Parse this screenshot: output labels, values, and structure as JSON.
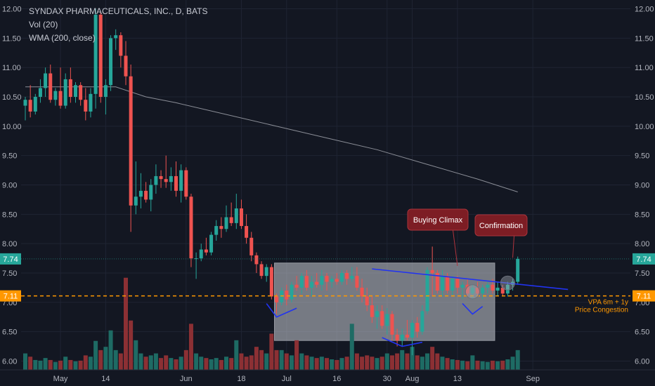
{
  "header": {
    "symbol_line": "SYNDAX PHARMACEUTICALS, INC., D, BATS",
    "indicator_volume": "Vol (20)",
    "indicator_wma": "WMA (200, close)"
  },
  "colors": {
    "background": "#131722",
    "up": "#26a69a",
    "down": "#ef5350",
    "wma": "#8a8d96",
    "trendline": "#2133f0",
    "congestion": "#ff9800",
    "callout": "#7d1d24"
  },
  "chart_data": {
    "type": "candlestick",
    "title": "SYNDAX PHARMACEUTICALS, INC., D, BATS",
    "ylim": [
      5.85,
      12.15
    ],
    "y_ticks": [
      12.0,
      11.5,
      11.0,
      10.5,
      10.0,
      9.5,
      9.0,
      8.5,
      8.0,
      7.5,
      7.0,
      6.5,
      6.0
    ],
    "y_tick_labels": [
      "12.00",
      "11.50",
      "11.00",
      "10.50",
      "10.00",
      "9.50",
      "9.00",
      "8.50",
      "8.00",
      "7.50",
      "7.00",
      "6.50",
      "6.00"
    ],
    "x_labels": [
      {
        "index": 7,
        "label": "May"
      },
      {
        "index": 16,
        "label": "14"
      },
      {
        "index": 32,
        "label": "Jun"
      },
      {
        "index": 43,
        "label": "18"
      },
      {
        "index": 52,
        "label": "Jul"
      },
      {
        "index": 62,
        "label": "16"
      },
      {
        "index": 72,
        "label": "30"
      },
      {
        "index": 77,
        "label": "Aug"
      },
      {
        "index": 86,
        "label": "13"
      },
      {
        "index": 101,
        "label": "Sep"
      }
    ],
    "grid": true,
    "last_price_label": "7.74",
    "congestion_price_label": "7.11",
    "congestion_level": 7.11,
    "candles": [
      {
        "o": 10.35,
        "h": 10.5,
        "l": 10.1,
        "c": 10.45,
        "v": 0.25
      },
      {
        "o": 10.45,
        "h": 10.7,
        "l": 10.15,
        "c": 10.25,
        "v": 0.2
      },
      {
        "o": 10.25,
        "h": 10.55,
        "l": 10.2,
        "c": 10.5,
        "v": 0.15
      },
      {
        "o": 10.5,
        "h": 10.8,
        "l": 10.4,
        "c": 10.65,
        "v": 0.14
      },
      {
        "o": 10.65,
        "h": 11.0,
        "l": 10.5,
        "c": 10.9,
        "v": 0.18
      },
      {
        "o": 10.9,
        "h": 11.05,
        "l": 10.4,
        "c": 10.45,
        "v": 0.15
      },
      {
        "o": 10.45,
        "h": 10.65,
        "l": 10.35,
        "c": 10.6,
        "v": 0.12
      },
      {
        "o": 10.6,
        "h": 11.0,
        "l": 10.3,
        "c": 10.35,
        "v": 0.14
      },
      {
        "o": 10.35,
        "h": 10.9,
        "l": 10.3,
        "c": 10.8,
        "v": 0.2
      },
      {
        "o": 10.8,
        "h": 11.0,
        "l": 10.4,
        "c": 10.5,
        "v": 0.15
      },
      {
        "o": 10.5,
        "h": 10.75,
        "l": 10.4,
        "c": 10.7,
        "v": 0.13
      },
      {
        "o": 10.7,
        "h": 10.75,
        "l": 10.35,
        "c": 10.45,
        "v": 0.14
      },
      {
        "o": 10.45,
        "h": 10.65,
        "l": 10.1,
        "c": 10.25,
        "v": 0.22
      },
      {
        "o": 10.25,
        "h": 10.65,
        "l": 10.15,
        "c": 10.55,
        "v": 0.2
      },
      {
        "o": 10.55,
        "h": 12.0,
        "l": 10.3,
        "c": 11.9,
        "v": 0.44
      },
      {
        "o": 11.9,
        "h": 11.95,
        "l": 10.4,
        "c": 10.5,
        "v": 0.3
      },
      {
        "o": 10.5,
        "h": 10.8,
        "l": 10.2,
        "c": 10.7,
        "v": 0.35
      },
      {
        "o": 10.7,
        "h": 11.55,
        "l": 10.6,
        "c": 11.5,
        "v": 0.6
      },
      {
        "o": 11.5,
        "h": 11.65,
        "l": 11.3,
        "c": 11.55,
        "v": 0.3
      },
      {
        "o": 11.55,
        "h": 11.6,
        "l": 11.0,
        "c": 11.2,
        "v": 0.25
      },
      {
        "o": 11.2,
        "h": 11.45,
        "l": 10.7,
        "c": 10.85,
        "v": 1.4
      },
      {
        "o": 10.85,
        "h": 11.05,
        "l": 8.2,
        "c": 8.65,
        "v": 0.75
      },
      {
        "o": 8.65,
        "h": 9.4,
        "l": 8.5,
        "c": 8.8,
        "v": 0.45
      },
      {
        "o": 8.8,
        "h": 9.2,
        "l": 8.6,
        "c": 8.9,
        "v": 0.25
      },
      {
        "o": 8.9,
        "h": 9.05,
        "l": 8.7,
        "c": 8.75,
        "v": 0.2
      },
      {
        "o": 8.75,
        "h": 9.1,
        "l": 8.55,
        "c": 9.0,
        "v": 0.22
      },
      {
        "o": 9.0,
        "h": 9.35,
        "l": 8.85,
        "c": 9.15,
        "v": 0.25
      },
      {
        "o": 9.15,
        "h": 9.25,
        "l": 8.95,
        "c": 9.1,
        "v": 0.18
      },
      {
        "o": 9.1,
        "h": 9.5,
        "l": 8.95,
        "c": 9.05,
        "v": 0.22
      },
      {
        "o": 9.05,
        "h": 9.3,
        "l": 8.9,
        "c": 9.15,
        "v": 0.18
      },
      {
        "o": 9.15,
        "h": 9.4,
        "l": 8.8,
        "c": 8.9,
        "v": 0.16
      },
      {
        "o": 8.9,
        "h": 9.35,
        "l": 8.7,
        "c": 9.25,
        "v": 0.2
      },
      {
        "o": 9.25,
        "h": 9.3,
        "l": 8.75,
        "c": 8.8,
        "v": 0.3
      },
      {
        "o": 8.8,
        "h": 8.85,
        "l": 7.6,
        "c": 7.75,
        "v": 0.7
      },
      {
        "o": 7.75,
        "h": 7.85,
        "l": 7.4,
        "c": 7.75,
        "v": 0.25
      },
      {
        "o": 7.75,
        "h": 8.0,
        "l": 7.7,
        "c": 7.9,
        "v": 0.2
      },
      {
        "o": 7.9,
        "h": 8.1,
        "l": 7.8,
        "c": 7.85,
        "v": 0.18
      },
      {
        "o": 7.85,
        "h": 8.2,
        "l": 7.8,
        "c": 8.15,
        "v": 0.16
      },
      {
        "o": 8.15,
        "h": 8.4,
        "l": 8.05,
        "c": 8.3,
        "v": 0.18
      },
      {
        "o": 8.3,
        "h": 8.45,
        "l": 8.1,
        "c": 8.25,
        "v": 0.15
      },
      {
        "o": 8.25,
        "h": 8.65,
        "l": 8.2,
        "c": 8.45,
        "v": 0.2
      },
      {
        "o": 8.45,
        "h": 8.7,
        "l": 8.3,
        "c": 8.35,
        "v": 0.18
      },
      {
        "o": 8.35,
        "h": 8.85,
        "l": 8.25,
        "c": 8.6,
        "v": 0.45
      },
      {
        "o": 8.6,
        "h": 8.75,
        "l": 8.25,
        "c": 8.3,
        "v": 0.25
      },
      {
        "o": 8.3,
        "h": 8.5,
        "l": 8.0,
        "c": 8.1,
        "v": 0.2
      },
      {
        "o": 8.1,
        "h": 8.2,
        "l": 7.7,
        "c": 7.8,
        "v": 0.22
      },
      {
        "o": 7.8,
        "h": 7.85,
        "l": 7.5,
        "c": 7.65,
        "v": 0.35
      },
      {
        "o": 7.65,
        "h": 7.7,
        "l": 7.4,
        "c": 7.45,
        "v": 0.3
      },
      {
        "o": 7.45,
        "h": 7.65,
        "l": 7.35,
        "c": 7.6,
        "v": 0.25
      },
      {
        "o": 7.6,
        "h": 7.65,
        "l": 7.05,
        "c": 7.1,
        "v": 0.55
      },
      {
        "o": 7.1,
        "h": 7.15,
        "l": 6.8,
        "c": 7.0,
        "v": 0.3
      },
      {
        "o": 7.0,
        "h": 7.25,
        "l": 6.95,
        "c": 7.2,
        "v": 0.3
      },
      {
        "o": 7.2,
        "h": 7.3,
        "l": 6.95,
        "c": 7.05,
        "v": 0.25
      },
      {
        "o": 7.05,
        "h": 7.35,
        "l": 7.0,
        "c": 7.3,
        "v": 0.22
      },
      {
        "o": 7.3,
        "h": 7.45,
        "l": 7.2,
        "c": 7.25,
        "v": 0.45
      },
      {
        "o": 7.25,
        "h": 7.5,
        "l": 7.15,
        "c": 7.45,
        "v": 0.25
      },
      {
        "o": 7.45,
        "h": 7.55,
        "l": 7.2,
        "c": 7.25,
        "v": 0.22
      },
      {
        "o": 7.25,
        "h": 7.45,
        "l": 7.1,
        "c": 7.35,
        "v": 0.2
      },
      {
        "o": 7.35,
        "h": 7.5,
        "l": 7.25,
        "c": 7.3,
        "v": 0.18
      },
      {
        "o": 7.3,
        "h": 7.55,
        "l": 7.2,
        "c": 7.45,
        "v": 0.2
      },
      {
        "o": 7.45,
        "h": 7.5,
        "l": 7.2,
        "c": 7.35,
        "v": 0.18
      },
      {
        "o": 7.35,
        "h": 7.45,
        "l": 7.25,
        "c": 7.4,
        "v": 0.16
      },
      {
        "o": 7.4,
        "h": 7.5,
        "l": 7.3,
        "c": 7.35,
        "v": 0.15
      },
      {
        "o": 7.35,
        "h": 7.55,
        "l": 7.3,
        "c": 7.5,
        "v": 0.18
      },
      {
        "o": 7.5,
        "h": 7.55,
        "l": 7.3,
        "c": 7.4,
        "v": 0.2
      },
      {
        "o": 7.4,
        "h": 7.6,
        "l": 7.35,
        "c": 7.45,
        "v": 0.7
      },
      {
        "o": 7.45,
        "h": 7.6,
        "l": 7.2,
        "c": 7.25,
        "v": 0.25
      },
      {
        "o": 7.25,
        "h": 7.4,
        "l": 7.0,
        "c": 7.1,
        "v": 0.2
      },
      {
        "o": 7.1,
        "h": 7.25,
        "l": 6.85,
        "c": 6.95,
        "v": 0.22
      },
      {
        "o": 6.95,
        "h": 7.1,
        "l": 6.65,
        "c": 6.75,
        "v": 0.2
      },
      {
        "o": 6.75,
        "h": 6.95,
        "l": 6.55,
        "c": 6.85,
        "v": 0.18
      },
      {
        "o": 6.85,
        "h": 6.95,
        "l": 6.55,
        "c": 6.6,
        "v": 0.2
      },
      {
        "o": 6.6,
        "h": 6.9,
        "l": 6.45,
        "c": 6.8,
        "v": 0.25
      },
      {
        "o": 6.8,
        "h": 6.85,
        "l": 6.35,
        "c": 6.45,
        "v": 0.22
      },
      {
        "o": 6.45,
        "h": 6.55,
        "l": 6.25,
        "c": 6.35,
        "v": 0.25
      },
      {
        "o": 6.35,
        "h": 6.55,
        "l": 6.25,
        "c": 6.45,
        "v": 0.3
      },
      {
        "o": 6.45,
        "h": 6.7,
        "l": 6.35,
        "c": 6.4,
        "v": 0.25
      },
      {
        "o": 6.4,
        "h": 6.7,
        "l": 6.1,
        "c": 6.65,
        "v": 0.35
      },
      {
        "o": 6.65,
        "h": 6.75,
        "l": 6.4,
        "c": 6.5,
        "v": 0.22
      },
      {
        "o": 6.5,
        "h": 6.95,
        "l": 6.45,
        "c": 6.85,
        "v": 0.2
      },
      {
        "o": 6.85,
        "h": 7.6,
        "l": 6.8,
        "c": 7.55,
        "v": 0.25
      },
      {
        "o": 7.55,
        "h": 7.95,
        "l": 7.1,
        "c": 7.5,
        "v": 0.35
      },
      {
        "o": 7.5,
        "h": 7.55,
        "l": 7.15,
        "c": 7.2,
        "v": 0.25
      },
      {
        "o": 7.2,
        "h": 7.55,
        "l": 7.1,
        "c": 7.45,
        "v": 0.2
      },
      {
        "o": 7.45,
        "h": 7.5,
        "l": 7.15,
        "c": 7.2,
        "v": 0.18
      },
      {
        "o": 7.2,
        "h": 7.45,
        "l": 7.1,
        "c": 7.4,
        "v": 0.16
      },
      {
        "o": 7.4,
        "h": 7.45,
        "l": 7.15,
        "c": 7.25,
        "v": 0.15
      },
      {
        "o": 7.25,
        "h": 7.35,
        "l": 7.05,
        "c": 7.3,
        "v": 0.14
      },
      {
        "o": 7.3,
        "h": 7.4,
        "l": 7.1,
        "c": 7.15,
        "v": 0.13
      },
      {
        "o": 7.15,
        "h": 7.3,
        "l": 7.05,
        "c": 7.25,
        "v": 0.22
      },
      {
        "o": 7.25,
        "h": 7.35,
        "l": 7.1,
        "c": 7.15,
        "v": 0.14
      },
      {
        "o": 7.15,
        "h": 7.3,
        "l": 7.05,
        "c": 7.25,
        "v": 0.13
      },
      {
        "o": 7.25,
        "h": 7.35,
        "l": 7.15,
        "c": 7.3,
        "v": 0.12
      },
      {
        "o": 7.3,
        "h": 7.4,
        "l": 7.15,
        "c": 7.2,
        "v": 0.14
      },
      {
        "o": 7.2,
        "h": 7.35,
        "l": 7.1,
        "c": 7.25,
        "v": 0.13
      },
      {
        "o": 7.25,
        "h": 7.3,
        "l": 7.1,
        "c": 7.15,
        "v": 0.14
      },
      {
        "o": 7.15,
        "h": 7.35,
        "l": 7.1,
        "c": 7.3,
        "v": 0.16
      },
      {
        "o": 7.3,
        "h": 7.4,
        "l": 7.2,
        "c": 7.35,
        "v": 0.2
      },
      {
        "o": 7.35,
        "h": 7.78,
        "l": 7.3,
        "c": 7.74,
        "v": 0.3
      }
    ],
    "wma": [
      {
        "i": 0,
        "y": 10.67
      },
      {
        "i": 18,
        "y": 10.67
      },
      {
        "i": 24,
        "y": 10.5
      },
      {
        "i": 30,
        "y": 10.4
      },
      {
        "i": 40,
        "y": 10.2
      },
      {
        "i": 50,
        "y": 10.0
      },
      {
        "i": 60,
        "y": 9.8
      },
      {
        "i": 70,
        "y": 9.6
      },
      {
        "i": 80,
        "y": 9.35
      },
      {
        "i": 90,
        "y": 9.1
      },
      {
        "i": 98,
        "y": 8.88
      }
    ],
    "volume_scale_max": 1.6,
    "volume_up_color": "#1e6b64",
    "volume_down_color": "#8c3034"
  },
  "annotations": {
    "buying_climax": {
      "label": "Buying Climax",
      "target_index": 86,
      "target_price": 7.62
    },
    "confirmation": {
      "label": "Confirmation",
      "target_index": 97,
      "target_price": 7.76
    },
    "congestion_note_line1": "VPA 6m + 1y",
    "congestion_note_line2": "Price Congestion",
    "congestion_box": {
      "from_index": 50,
      "to_index": 93,
      "top": 7.67,
      "bottom": 6.35
    },
    "trendline": [
      {
        "i": 69,
        "y": 7.57
      },
      {
        "i": 108,
        "y": 7.22
      }
    ],
    "arcs": [
      {
        "points": [
          {
            "i": 48,
            "y": 6.98
          },
          {
            "i": 50,
            "y": 6.75
          },
          {
            "i": 54,
            "y": 6.9
          }
        ]
      },
      {
        "points": [
          {
            "i": 71,
            "y": 6.4
          },
          {
            "i": 75,
            "y": 6.25
          },
          {
            "i": 79,
            "y": 6.32
          }
        ]
      },
      {
        "points": [
          {
            "i": 87,
            "y": 6.98
          },
          {
            "i": 89,
            "y": 6.8
          },
          {
            "i": 91,
            "y": 6.93
          }
        ]
      }
    ],
    "circles": [
      {
        "i": 89,
        "y": 7.18
      },
      {
        "i": 96,
        "y": 7.33
      }
    ]
  }
}
